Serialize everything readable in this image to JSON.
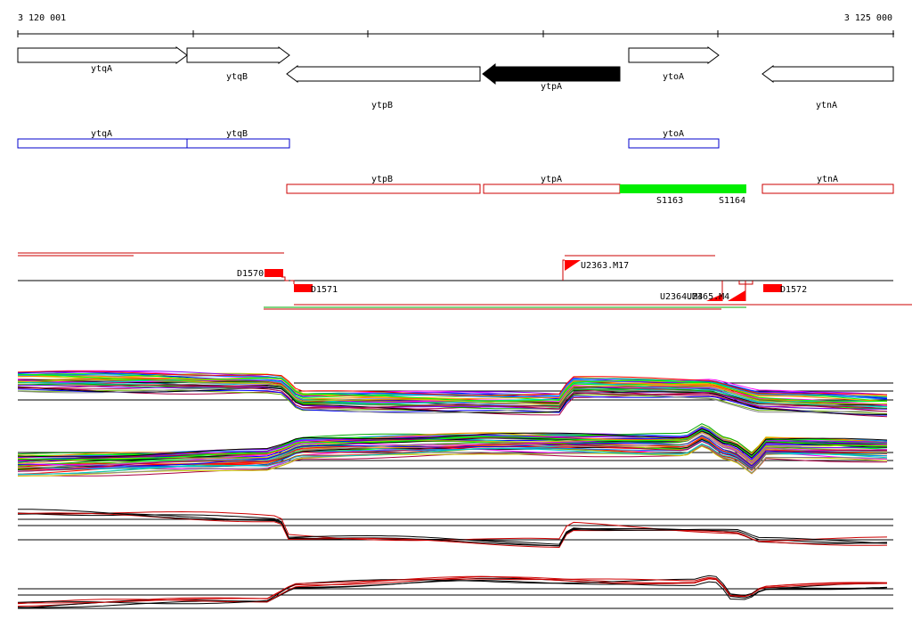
{
  "coordinates": {
    "start_label": "3 120 001",
    "end_label": "3 125 000"
  },
  "genes": [
    {
      "name": "ytqA",
      "strand": "+",
      "highlight": false
    },
    {
      "name": "ytqB",
      "strand": "+",
      "highlight": false
    },
    {
      "name": "ytpB",
      "strand": "-",
      "highlight": false
    },
    {
      "name": "ytpA",
      "strand": "-",
      "highlight": true
    },
    {
      "name": "ytoA",
      "strand": "+",
      "highlight": false
    },
    {
      "name": "ytnA",
      "strand": "-",
      "highlight": false
    }
  ],
  "forward_features": [
    {
      "name": "ytqA"
    },
    {
      "name": "ytqB"
    },
    {
      "name": "ytoA"
    }
  ],
  "reverse_features": [
    {
      "name": "ytpB"
    },
    {
      "name": "ytpA"
    },
    {
      "name": "ytnA"
    }
  ],
  "segments": [
    {
      "name": "S1163",
      "color": "#00ee00"
    },
    {
      "name": "S1164",
      "color": "#00ee00"
    }
  ],
  "signals": [
    {
      "name": "D1570"
    },
    {
      "name": "D1571"
    },
    {
      "name": "U2363.M17"
    },
    {
      "name": "U2364.M4"
    },
    {
      "name": "U2365.M4"
    },
    {
      "name": "D1572"
    }
  ],
  "palette": {
    "forward": "#0000cc",
    "reverse": "#cc0000",
    "signal": "#ff0000",
    "highlight_gene": "#000000"
  }
}
